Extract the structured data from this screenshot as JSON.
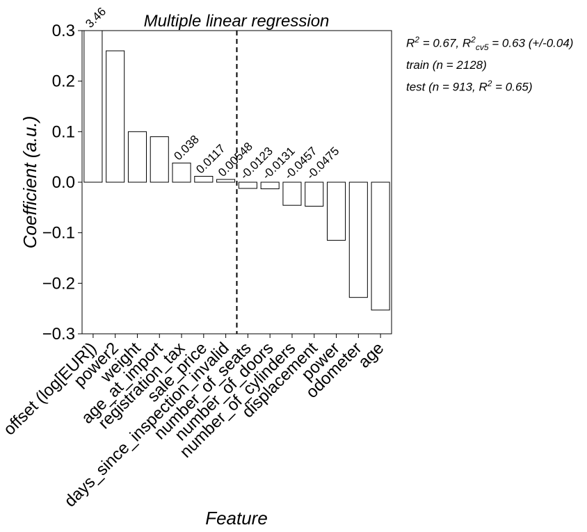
{
  "chart_data": {
    "type": "bar",
    "title": "Multiple linear regression",
    "xlabel": "Feature",
    "ylabel": "Coefficient (a.u.)",
    "ylim": [
      -0.3,
      0.3
    ],
    "yticks": [
      0.3,
      0.2,
      0.1,
      0.0,
      -0.1,
      -0.2,
      -0.3
    ],
    "ytick_labels": [
      "0.3",
      "0.2",
      "0.1",
      "0.0",
      "−0.1",
      "−0.2",
      "−0.3"
    ],
    "categories": [
      "offset (log[EUR])",
      "power2",
      "weight",
      "age_at_import",
      "registration_tax",
      "sale_price",
      "days_since_inspection_invalid",
      "number_of_seats",
      "number_of_doors",
      "number_of_cylinders",
      "displacement",
      "power",
      "odometer",
      "age"
    ],
    "values": [
      3.46,
      0.26,
      0.1,
      0.09,
      0.038,
      0.0117,
      0.00548,
      -0.0123,
      -0.0131,
      -0.0457,
      -0.0475,
      -0.115,
      -0.228,
      -0.253
    ],
    "data_labels": [
      "3.46",
      "",
      "",
      "",
      "0.038",
      "0.0117",
      "0.00548",
      "-0.0123",
      "-0.0131",
      "-0.0457",
      "-0.0475",
      "",
      "",
      ""
    ],
    "separator_after_index": 6,
    "bar_fill": "#ffffff",
    "bar_edge": "#000000",
    "grid": false
  },
  "stats": {
    "line1": {
      "r2_sym": "R",
      "r2_sup": "2",
      "r2_val": " = 0.67, ",
      "cv_sym": "R",
      "cv_sup": "2",
      "cv_sub": "cv5",
      "cv_val": " = 0.63 (+/-0.04)"
    },
    "line2": "train (n = 2128)",
    "line3": {
      "pre": "test (n = 913, ",
      "sym": "R",
      "sup": "2",
      "post": " = 0.65)"
    }
  }
}
